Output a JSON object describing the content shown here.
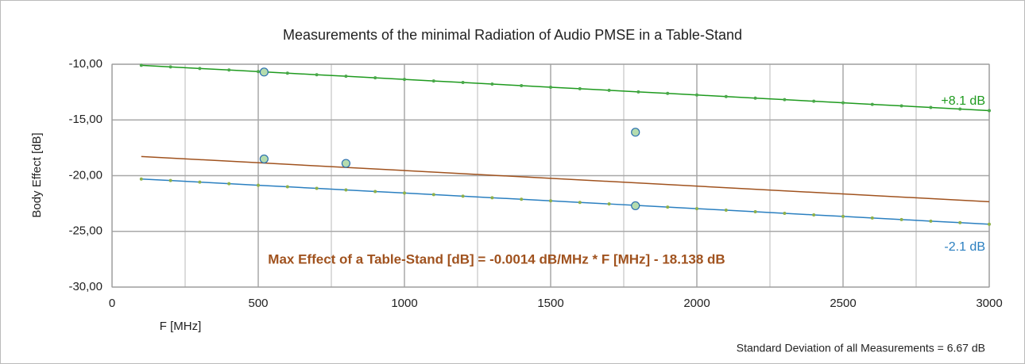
{
  "chart_data": {
    "type": "line",
    "title": "Measurements of the minimal Radiation of Audio PMSE  in a Table-Stand",
    "xlabel": "F [MHz]",
    "ylabel": "Body Effect  [dB]",
    "xlim": [
      0,
      3000
    ],
    "xticks": [
      0,
      500,
      1000,
      1500,
      2000,
      2500,
      3000
    ],
    "x_minor_ticks": [
      250,
      750,
      1250,
      1750,
      2250,
      2750
    ],
    "ylim": [
      -30,
      -10
    ],
    "yticks": [
      {
        "value": -10,
        "label": "-10,00"
      },
      {
        "value": -15,
        "label": "-15,00"
      },
      {
        "value": -20,
        "label": "-20,00"
      },
      {
        "value": -25,
        "label": "-25,00"
      },
      {
        "value": -30,
        "label": "-30,00"
      }
    ],
    "grid": true,
    "series": [
      {
        "type": "line",
        "color": "#1e9a1e",
        "marker_color": "#4aa84a",
        "x": [
          100,
          200,
          300,
          400,
          500,
          600,
          700,
          800,
          900,
          1000,
          1100,
          1200,
          1300,
          1400,
          1500,
          1600,
          1700,
          1800,
          1900,
          2000,
          2100,
          2200,
          2300,
          2400,
          2500,
          2600,
          2700,
          2800,
          2900,
          3000
        ],
        "values": [
          -10.1,
          -10.24,
          -10.38,
          -10.52,
          -10.66,
          -10.8,
          -10.94,
          -11.08,
          -11.22,
          -11.36,
          -11.5,
          -11.64,
          -11.78,
          -11.92,
          -12.06,
          -12.2,
          -12.34,
          -12.48,
          -12.62,
          -12.76,
          -12.9,
          -13.04,
          -13.18,
          -13.32,
          -13.46,
          -13.6,
          -13.74,
          -13.88,
          -14.02,
          -14.16
        ]
      },
      {
        "type": "line",
        "color": "#2a7fc0",
        "marker_color": "#8db04a",
        "x": [
          100,
          200,
          300,
          400,
          500,
          600,
          700,
          800,
          900,
          1000,
          1100,
          1200,
          1300,
          1400,
          1500,
          1600,
          1700,
          1800,
          1900,
          2000,
          2100,
          2200,
          2300,
          2400,
          2500,
          2600,
          2700,
          2800,
          2900,
          3000
        ],
        "values": [
          -20.3,
          -20.44,
          -20.58,
          -20.72,
          -20.86,
          -21,
          -21.14,
          -21.28,
          -21.42,
          -21.56,
          -21.7,
          -21.84,
          -21.98,
          -22.12,
          -22.26,
          -22.4,
          -22.54,
          -22.68,
          -22.82,
          -22.96,
          -23.1,
          -23.24,
          -23.38,
          -23.52,
          -23.66,
          -23.8,
          -23.94,
          -24.08,
          -24.22,
          -24.36
        ]
      },
      {
        "type": "trend",
        "color": "#a0521e",
        "x": [
          100,
          3000
        ],
        "values": [
          -18.28,
          -22.34
        ]
      },
      {
        "type": "scatter",
        "color": "#2a6fb0",
        "marker_color": "#b5dcae",
        "x": [
          520,
          520,
          800,
          1790,
          1790
        ],
        "values": [
          -10.7,
          -18.5,
          -18.9,
          -16.1,
          -22.7
        ]
      }
    ],
    "annotations": [
      {
        "text": "+8.1 dB",
        "color": "#1e9a1e"
      },
      {
        "text": "-2.1 dB",
        "color": "#2a7fc0"
      },
      {
        "text": "Max Effect of a Table-Stand [dB] = -0.0014 dB/MHz * F [MHz] - 18.138  dB",
        "color": "#a0521e"
      },
      {
        "text": "Standard Deviation of all Measurements = 6.67 dB",
        "color": "#222222"
      }
    ]
  }
}
